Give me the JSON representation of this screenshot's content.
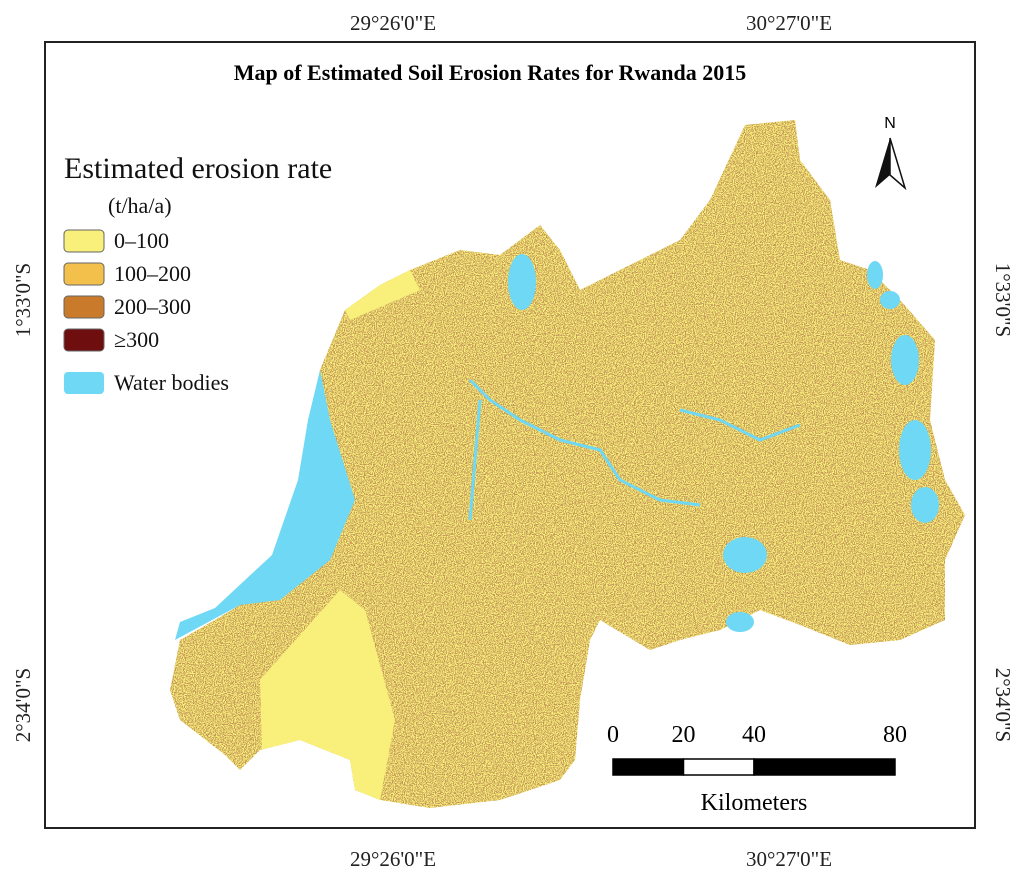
{
  "title": "Map of Estimated Soil Erosion Rates for Rwanda 2015",
  "legend": {
    "title": "Estimated erosion rate",
    "unit": "(t/ha/a)",
    "items": [
      {
        "label": "0–100",
        "color": "#f8f07a"
      },
      {
        "label": "100–200",
        "color": "#f4c04c"
      },
      {
        "label": "200–300",
        "color": "#c97a2a"
      },
      {
        "label": "≥300",
        "color": "#6e0e0e"
      },
      {
        "label": "Water bodies",
        "color": "#6fd8f4"
      }
    ]
  },
  "coordinates": {
    "top": [
      "29°26'0\"E",
      "30°27'0\"E"
    ],
    "bottom": [
      "29°26'0\"E",
      "30°27'0\"E"
    ],
    "left": [
      "1°33'0\"S",
      "2°34'0\"S"
    ],
    "right": [
      "1°33'0\"S",
      "2°34'0\"S"
    ]
  },
  "north_arrow": "N",
  "scale_bar": {
    "ticks": [
      0,
      20,
      40,
      80
    ],
    "unit": "Kilometers"
  }
}
